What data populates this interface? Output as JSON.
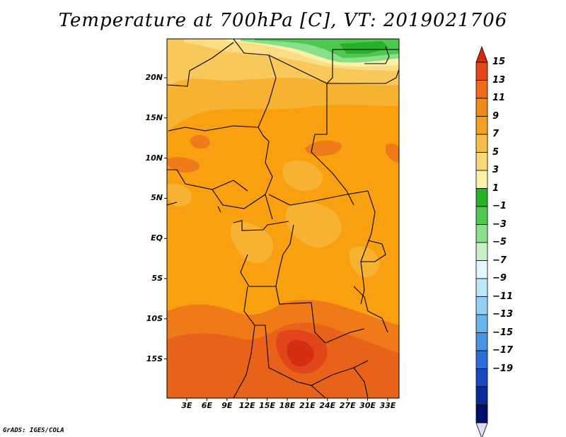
{
  "title": "Temperature at 700hPa [C], VT: 2019021706",
  "map": {
    "lat_labels": [
      "20N",
      "15N",
      "10N",
      "5N",
      "EQ",
      "5S",
      "10S",
      "15S"
    ],
    "lon_labels": [
      "3E",
      "6E",
      "9E",
      "12E",
      "15E",
      "18E",
      "21E",
      "24E",
      "27E",
      "30E",
      "33E"
    ]
  },
  "colorbar": {
    "labels": [
      "15",
      "13",
      "11",
      "9",
      "7",
      "5",
      "3",
      "1",
      "−1",
      "−3",
      "−5",
      "−7",
      "−9",
      "−11",
      "−13",
      "−15",
      "−17",
      "−19"
    ],
    "colors": [
      "#d42a10",
      "#e5461a",
      "#ee6a1c",
      "#f08a1a",
      "#f5a020",
      "#f8be48",
      "#fad878",
      "#fbf0a8",
      "#28b028",
      "#50c850",
      "#8ae08a",
      "#c8f0c8",
      "#e4f6ff",
      "#bde6fa",
      "#94d0f6",
      "#6ab4ee",
      "#4a94e4",
      "#2a6ed8",
      "#1a48c0",
      "#0a2a9a",
      "#00106a",
      "#dcdcf6"
    ]
  },
  "credit": "GrADS: IGES/COLA"
}
